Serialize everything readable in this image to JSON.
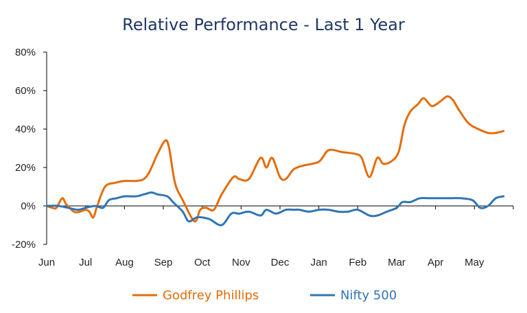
{
  "chart_data": {
    "type": "line",
    "title": "Relative Performance - Last 1 Year",
    "xlabel": "",
    "ylabel": "",
    "categories": [
      "Jun",
      "Jul",
      "Aug",
      "Sep",
      "Oct",
      "Nov",
      "Dec",
      "Jan",
      "Feb",
      "Mar",
      "Apr",
      "May"
    ],
    "ylim": [
      -20,
      80
    ],
    "yticks": [
      -20,
      0,
      20,
      40,
      60,
      80
    ],
    "ytick_labels": [
      "-20%",
      "0%",
      "20%",
      "40%",
      "60%",
      "80%"
    ],
    "x_range": [
      0,
      12
    ],
    "grid": false,
    "legend_position": "bottom",
    "series": [
      {
        "name": "Godfrey Phillips",
        "color": "#e46c0a",
        "x": [
          0.0,
          0.15,
          0.25,
          0.4,
          0.5,
          0.7,
          0.85,
          1.0,
          1.1,
          1.2,
          1.3,
          1.5,
          1.75,
          2.0,
          2.3,
          2.5,
          2.65,
          2.85,
          3.05,
          3.15,
          3.3,
          3.5,
          3.8,
          3.95,
          4.1,
          4.3,
          4.5,
          4.8,
          4.95,
          5.2,
          5.5,
          5.65,
          5.8,
          6.0,
          6.15,
          6.35,
          6.6,
          7.0,
          7.25,
          7.6,
          7.95,
          8.1,
          8.3,
          8.5,
          8.65,
          8.85,
          9.05,
          9.2,
          9.35,
          9.55,
          9.7,
          9.9,
          10.1,
          10.3,
          10.45,
          10.6,
          10.85,
          11.1,
          11.35,
          11.55,
          11.75
        ],
        "values": [
          0,
          -1,
          -1,
          4,
          1,
          -3,
          -3,
          -2,
          -3,
          -6,
          0,
          10,
          12,
          13,
          13,
          14,
          18,
          27,
          34,
          30,
          12,
          3,
          -8,
          -2,
          -1,
          -2,
          6,
          15,
          14,
          14,
          25,
          20,
          25,
          15,
          14,
          19,
          21,
          23,
          29,
          28,
          27,
          25,
          15,
          25,
          22,
          23,
          28,
          42,
          49,
          53,
          56,
          52,
          54,
          57,
          55,
          50,
          43,
          40,
          38,
          38,
          39
        ]
      },
      {
        "name": "Nifty 500",
        "color": "#2e75b6",
        "x": [
          0.0,
          0.3,
          0.55,
          0.8,
          1.0,
          1.25,
          1.45,
          1.6,
          1.8,
          2.0,
          2.3,
          2.5,
          2.7,
          2.85,
          3.1,
          3.25,
          3.5,
          3.65,
          3.85,
          4.0,
          4.2,
          4.5,
          4.75,
          4.95,
          5.2,
          5.5,
          5.65,
          5.9,
          6.15,
          6.35,
          6.5,
          6.75,
          7.0,
          7.25,
          7.5,
          7.75,
          8.0,
          8.3,
          8.5,
          8.75,
          9.0,
          9.15,
          9.35,
          9.6,
          9.85,
          10.1,
          10.4,
          10.65,
          10.95,
          11.15,
          11.35,
          11.55,
          11.75
        ],
        "values": [
          0,
          0,
          -1,
          -2,
          -1,
          0,
          -1,
          3,
          4,
          5,
          5,
          6,
          7,
          6,
          5,
          2,
          -3,
          -8,
          -6,
          -6,
          -7,
          -10,
          -4,
          -4,
          -3,
          -5,
          -2,
          -4,
          -2,
          -2,
          -2,
          -3,
          -2,
          -2,
          -3,
          -3,
          -2,
          -5,
          -5,
          -3,
          -1,
          2,
          2,
          4,
          4,
          4,
          4,
          4,
          3,
          -1,
          0,
          4,
          5
        ]
      }
    ]
  }
}
